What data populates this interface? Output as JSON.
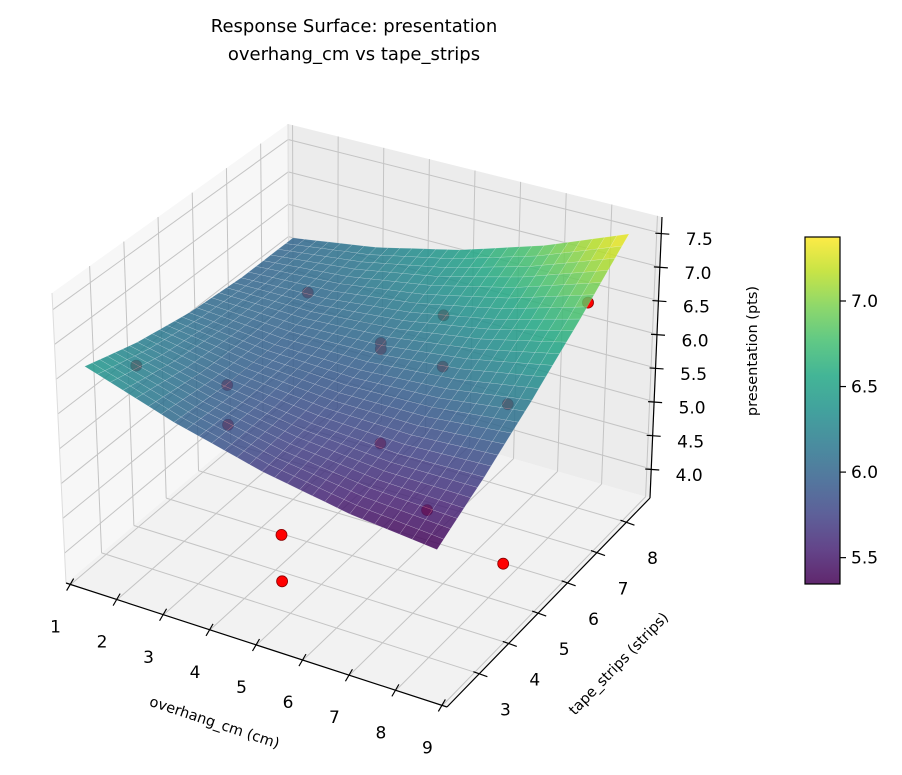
{
  "chart_data": {
    "type": "surface3d",
    "title": "Response Surface: presentation",
    "subtitle": "overhang_cm vs tape_strips",
    "xlabel": "overhang_cm (cm)",
    "ylabel": "tape_strips (strips)",
    "zlabel": "presentation (pts)",
    "xlim": [
      0.9,
      9.1
    ],
    "ylim": [
      1.9,
      8.8
    ],
    "zlim": [
      3.57,
      7.74
    ],
    "x_ticks": [
      "1",
      "2",
      "3",
      "4",
      "5",
      "6",
      "7",
      "8",
      "9"
    ],
    "y_ticks": [
      "3",
      "4",
      "5",
      "6",
      "7",
      "8"
    ],
    "z_ticks": [
      "4.0",
      "4.5",
      "5.0",
      "5.5",
      "6.0",
      "6.5",
      "7.0",
      "7.5"
    ],
    "grid": true,
    "colormap": "viridis",
    "surface": {
      "x": [
        1,
        2.85,
        4.7,
        6.55,
        8.4
      ],
      "y": [
        2.6,
        4.15,
        5.7,
        7.25,
        8.8
      ],
      "z": [
        [
          6.45,
          6.025,
          5.7,
          5.475,
          5.35
        ],
        [
          6.225,
          5.954,
          5.784,
          5.713,
          5.7425
        ],
        [
          6.075,
          5.959,
          5.9425,
          6.026,
          6.21
        ],
        [
          6.0,
          6.038,
          6.176,
          6.414,
          6.7525
        ],
        [
          6.0,
          6.1925,
          6.485,
          6.8775,
          7.37
        ]
      ]
    },
    "scatter": {
      "color": "#ff0000",
      "points": [
        {
          "x": 1,
          "y": 4.1,
          "z": 5.9
        },
        {
          "x": 3,
          "y": 6.5,
          "z": 6.45
        },
        {
          "x": 5,
          "y": 7.88,
          "z": 5.93
        },
        {
          "x": 5,
          "y": 7.88,
          "z": 5.16
        },
        {
          "x": 5,
          "y": 5.9,
          "z": 6.32
        },
        {
          "x": 5,
          "y": 5.9,
          "z": 6.23
        },
        {
          "x": 5,
          "y": 5.9,
          "z": 4.84
        },
        {
          "x": 3,
          "y": 4.02,
          "z": 6.05
        },
        {
          "x": 3,
          "y": 4.02,
          "z": 5.47
        },
        {
          "x": 7,
          "y": 7.06,
          "z": 5.32
        },
        {
          "x": 7,
          "y": 4.44,
          "z": 4.87
        },
        {
          "x": 8.6,
          "y": 7.18,
          "z": 7.06
        },
        {
          "x": 5.5,
          "y": 2.0,
          "z": 4.54
        },
        {
          "x": 5.5,
          "y": 2.0,
          "z": 5.2
        },
        {
          "x": 9,
          "y": 3.9,
          "z": 4.73
        }
      ]
    },
    "colorbar": {
      "range": [
        5.346,
        7.374
      ],
      "ticks": [
        "5.5",
        "6.0",
        "6.5",
        "7.0"
      ]
    }
  }
}
